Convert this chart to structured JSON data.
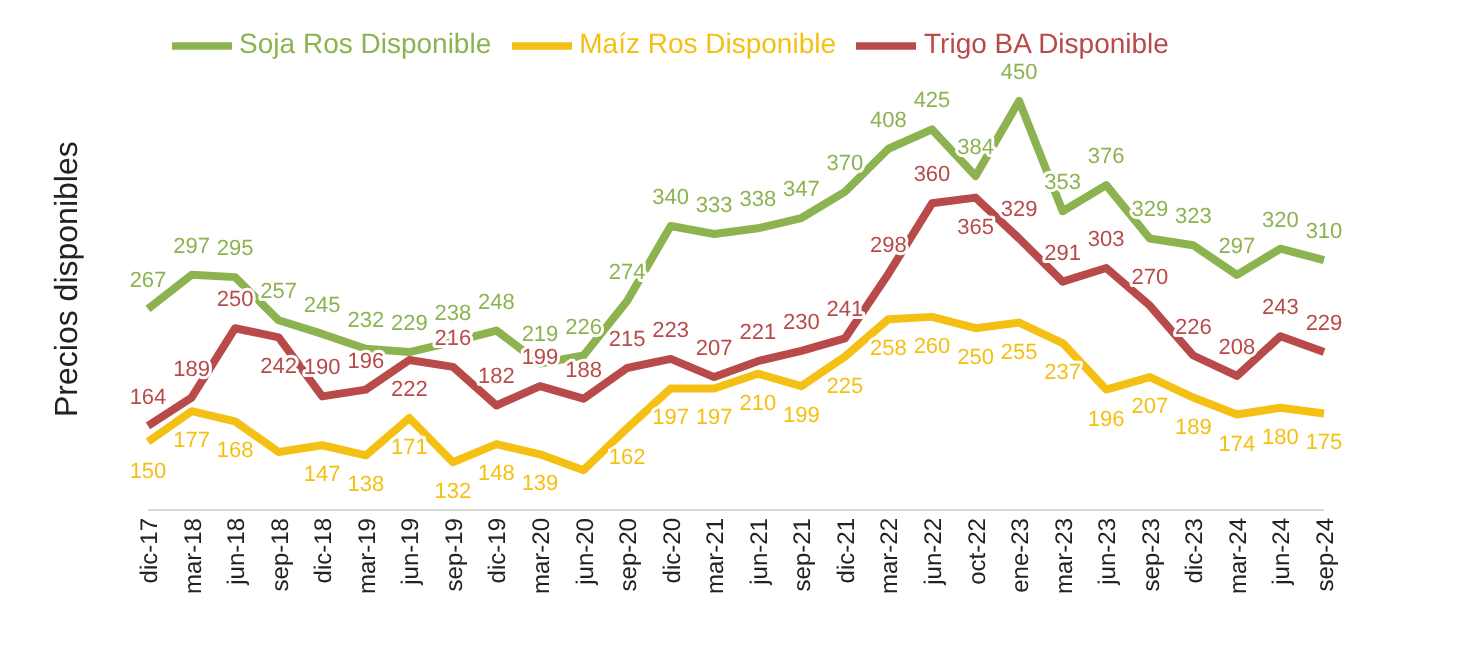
{
  "chart_data": {
    "type": "line",
    "ylabel": "Precios disponibles",
    "categories": [
      "dic-17",
      "mar-18",
      "jun-18",
      "sep-18",
      "dic-18",
      "mar-19",
      "jun-19",
      "sep-19",
      "dic-19",
      "mar-20",
      "jun-20",
      "sep-20",
      "dic-20",
      "mar-21",
      "jun-21",
      "sep-21",
      "dic-21",
      "mar-22",
      "jun-22",
      "oct-22",
      "ene-23",
      "mar-23",
      "jun-23",
      "sep-23",
      "dic-23",
      "mar-24",
      "jun-24",
      "sep-24"
    ],
    "series": [
      {
        "name": "Soja Ros Disponible",
        "color": "#8cb350",
        "values": [
          267,
          297,
          295,
          257,
          245,
          232,
          229,
          238,
          248,
          219,
          226,
          274,
          340,
          333,
          338,
          347,
          370,
          408,
          425,
          384,
          450,
          353,
          376,
          329,
          323,
          297,
          320,
          310
        ],
        "value_labels": [
          "267",
          "297",
          "295",
          "257",
          "245",
          "232",
          "229",
          "238",
          "248",
          "219",
          "226",
          "274",
          "340",
          "333",
          "338",
          "347",
          "370",
          "408",
          "425",
          "384",
          "450",
          "353",
          "376",
          "329",
          "323",
          "297",
          "320",
          "310"
        ]
      },
      {
        "name": "Maíz Ros Disponible",
        "color": "#f5c014",
        "values": [
          150,
          177,
          168,
          141,
          147,
          138,
          171,
          132,
          148,
          139,
          125,
          162,
          197,
          197,
          210,
          199,
          225,
          258,
          260,
          250,
          255,
          237,
          196,
          207,
          189,
          174,
          180,
          175
        ],
        "value_labels": [
          "150",
          "177",
          "168",
          null,
          "147",
          "138",
          "171",
          "132",
          "148",
          "139",
          null,
          "162",
          "197",
          "197",
          "210",
          "199",
          "225",
          "258",
          "260",
          "250",
          "255",
          "237",
          "196",
          "207",
          "189",
          "174",
          "180",
          "175"
        ]
      },
      {
        "name": "Trigo BA Disponible",
        "color": "#b94a4a",
        "values": [
          164,
          189,
          250,
          242,
          190,
          196,
          222,
          216,
          182,
          199,
          188,
          215,
          223,
          207,
          221,
          230,
          241,
          298,
          360,
          365,
          329,
          291,
          303,
          270,
          226,
          208,
          243,
          229
        ],
        "value_labels": [
          "164",
          "189",
          "250",
          "242",
          "190",
          "196",
          "222",
          "216",
          "182",
          "199",
          "188",
          "215",
          "223",
          "207",
          "221",
          "230",
          "241",
          "298",
          "360",
          "365",
          "329",
          "291",
          "303",
          "270",
          "226",
          "208",
          "243",
          "229"
        ]
      }
    ],
    "tick_labels": "x",
    "legend": "top",
    "marker": "none",
    "line_style": "solid"
  }
}
